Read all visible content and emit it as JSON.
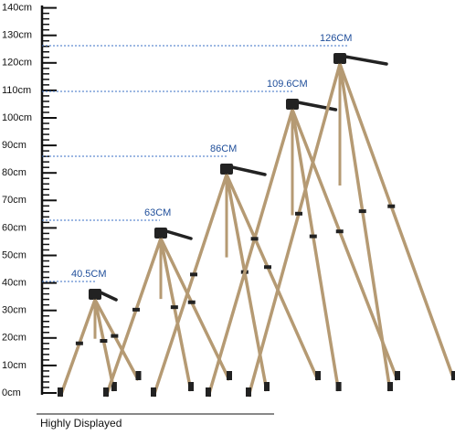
{
  "ruler": {
    "labels": [
      "0cm",
      "10cm",
      "20cm",
      "30cm",
      "40cm",
      "50cm",
      "60cm",
      "70cm",
      "80cm",
      "90cm",
      "100cm",
      "110cm",
      "120cm",
      "130cm",
      "140cm"
    ]
  },
  "heights": [
    {
      "label": "40.5CM"
    },
    {
      "label": "63CM"
    },
    {
      "label": "86CM"
    },
    {
      "label": "109.6CM"
    },
    {
      "label": "126CM"
    }
  ],
  "caption": "Highly Displayed"
}
